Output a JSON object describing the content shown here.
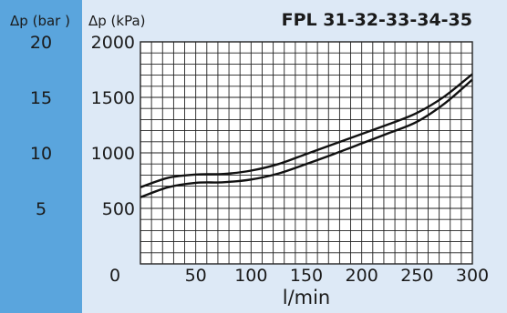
{
  "chart_data": {
    "type": "line",
    "title": "FPL 31-32-33-34-35",
    "xlabel": "l/min",
    "ylabel": "Δp (kPa)",
    "secondary_ylabel": "Δp (bar )",
    "xlim": [
      0,
      300
    ],
    "ylim": [
      0,
      2000
    ],
    "grid": true,
    "x_ticks": [
      "0",
      "50",
      "100",
      "150",
      "200",
      "250",
      "300"
    ],
    "y_ticks": [
      "500",
      "1000",
      "1500",
      "2000"
    ],
    "secondary_y_ticks": [
      "5",
      "10",
      "15",
      "20"
    ],
    "series": [
      {
        "x": [
          0,
          25,
          50,
          75,
          100,
          125,
          150,
          175,
          200,
          225,
          250,
          275,
          300
        ],
        "values": [
          690,
          775,
          805,
          810,
          840,
          900,
          990,
          1080,
          1170,
          1260,
          1360,
          1510,
          1710
        ]
      },
      {
        "x": [
          0,
          25,
          50,
          75,
          100,
          125,
          150,
          175,
          200,
          225,
          250,
          275,
          300
        ],
        "values": [
          600,
          690,
          730,
          735,
          760,
          815,
          900,
          990,
          1085,
          1180,
          1280,
          1445,
          1660
        ]
      }
    ]
  },
  "colors": {
    "side_panel": "#5aa5dd",
    "plot_panel": "#dde9f6",
    "plot_area": "#ffffff",
    "grid": "#222222",
    "curve": "#111111"
  }
}
